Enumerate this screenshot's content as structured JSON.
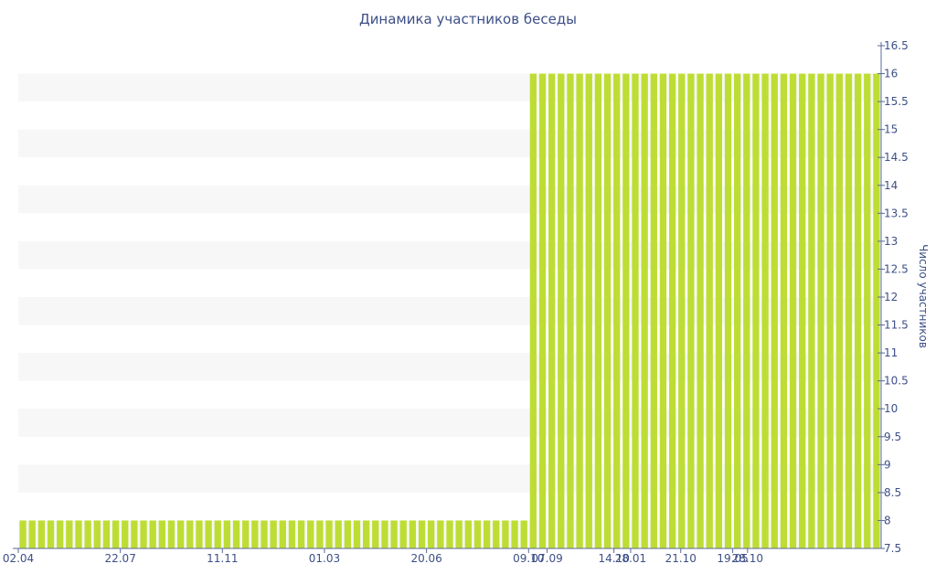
{
  "chart_data": {
    "type": "bar",
    "title": "Динамика участников беседы",
    "ylabel": "Число участников",
    "xlabel": "",
    "ylim": [
      7.5,
      16.5
    ],
    "y_ticks": [
      "7.5",
      "8",
      "8.5",
      "9",
      "9.5",
      "10",
      "10.5",
      "11",
      "11.5",
      "12",
      "12.5",
      "13",
      "13.5",
      "14",
      "14.5",
      "15",
      "15.5",
      "16",
      "16.5"
    ],
    "x_tick_labels": [
      "02.04",
      "22.07",
      "11.11",
      "01.03",
      "20.06",
      "09.10",
      "28.01",
      "19.05",
      "07.09",
      "14.10",
      "21.10",
      "28.10"
    ],
    "grid": "alternating horizontal bands",
    "bar_color": "#bedd34",
    "series": [
      {
        "values": [
          8,
          8,
          8,
          8,
          8,
          8,
          8,
          8,
          8,
          8,
          8,
          8,
          8,
          8,
          8,
          8,
          8,
          8,
          8,
          8,
          8,
          8,
          8,
          8,
          8,
          8,
          8,
          8,
          8,
          8,
          8,
          8,
          8,
          8,
          8,
          8,
          8,
          8,
          8,
          8,
          8,
          8,
          8,
          8,
          8,
          8,
          8,
          8,
          8,
          8,
          8,
          8,
          8,
          8,
          8,
          16,
          16,
          16,
          16,
          16,
          16,
          16,
          16,
          16,
          16,
          16,
          16,
          16,
          16,
          16,
          16,
          16,
          16,
          16,
          16,
          16,
          16,
          16,
          16,
          16,
          16,
          16,
          16,
          16,
          16,
          16,
          16,
          16,
          16,
          16,
          16,
          16,
          16
        ]
      }
    ]
  }
}
